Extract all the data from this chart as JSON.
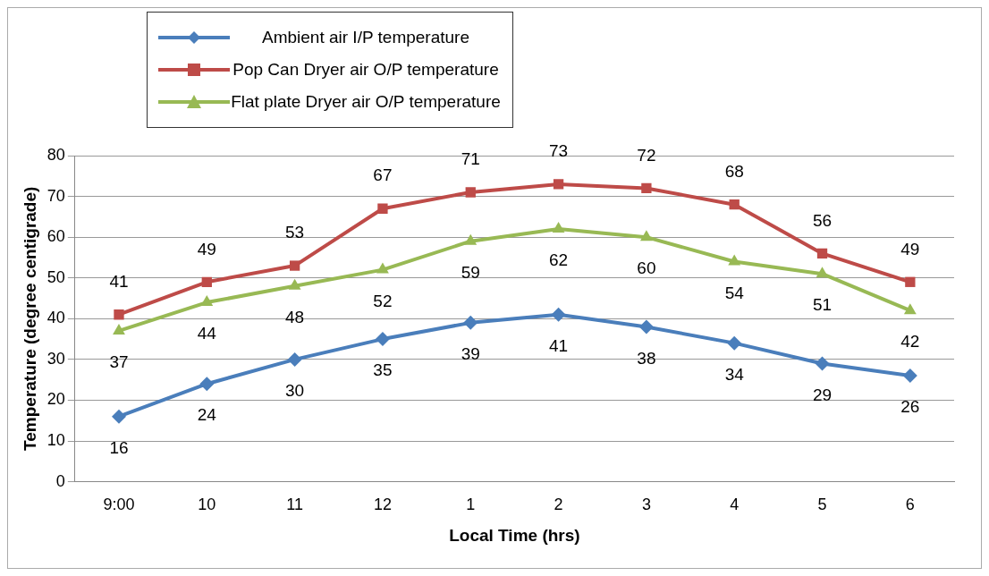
{
  "chart_data": {
    "type": "line",
    "xlabel": "Local Time (hrs)",
    "ylabel": "Temperature (degree centigrade)",
    "categories": [
      "9:00",
      "10",
      "11",
      "12",
      "1",
      "2",
      "3",
      "4",
      "5",
      "6"
    ],
    "series": [
      {
        "name": "Ambient air I/P temperature",
        "color": "#4a7ebb",
        "marker": "diamond",
        "values": [
          16,
          24,
          30,
          35,
          39,
          41,
          38,
          34,
          29,
          26
        ]
      },
      {
        "name": "Pop Can Dryer air O/P temperature",
        "color": "#be4b48",
        "marker": "square",
        "values": [
          41,
          49,
          53,
          67,
          71,
          73,
          72,
          68,
          56,
          49
        ]
      },
      {
        "name": "Flat plate Dryer air O/P temperature",
        "color": "#98b954",
        "marker": "triangle",
        "values": [
          37,
          44,
          48,
          52,
          59,
          62,
          60,
          54,
          51,
          42
        ]
      }
    ],
    "ylim": [
      0,
      80
    ],
    "yticks": [
      0,
      10,
      20,
      30,
      40,
      50,
      60,
      70,
      80
    ],
    "grid": "y",
    "legend": "top left",
    "data_labels": true
  }
}
